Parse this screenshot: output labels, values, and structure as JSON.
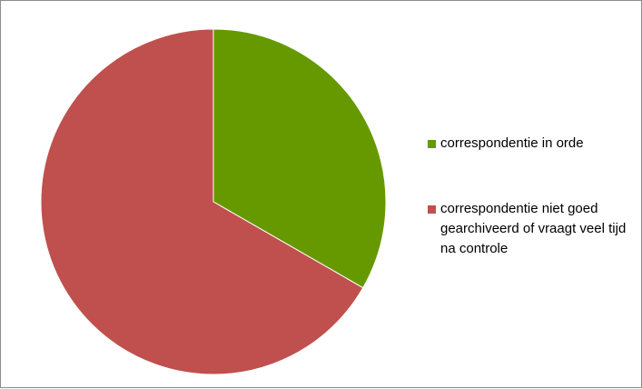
{
  "chart_data": {
    "type": "pie",
    "title": "",
    "start_angle_deg": 0,
    "direction": "clockwise",
    "legend_position": "right",
    "slices": [
      {
        "label": "correspondentie in orde",
        "value": 33.3,
        "color": "#669900"
      },
      {
        "label": "correspondentie niet goed gearchiveerd of vraagt veel tijd na controle",
        "value": 66.7,
        "color": "#c0504d"
      }
    ]
  }
}
